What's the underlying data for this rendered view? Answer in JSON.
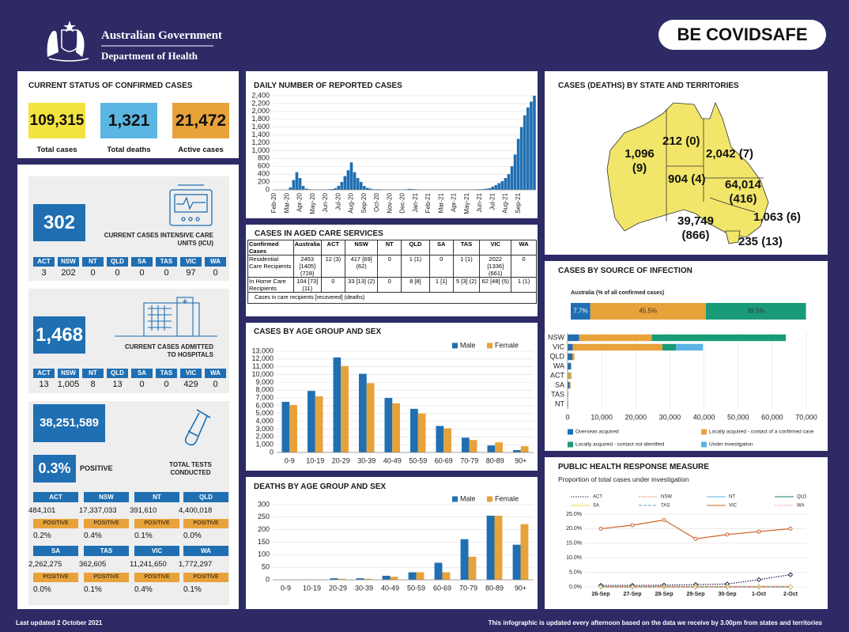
{
  "header": {
    "agency": "Australian Government",
    "department": "Department of Health",
    "brand": "BE COVIDSAFE"
  },
  "status": {
    "title": "CURRENT STATUS OF CONFIRMED CASES",
    "items": [
      {
        "value": "109,315",
        "label": "Total cases"
      },
      {
        "value": "1,321",
        "label": "Total deaths"
      },
      {
        "value": "21,472",
        "label": "Active cases"
      }
    ]
  },
  "states": [
    "ACT",
    "NSW",
    "NT",
    "QLD",
    "SA",
    "TAS",
    "VIC",
    "WA"
  ],
  "icu": {
    "value": "302",
    "label": "CURRENT CASES INTENSIVE CARE UNITS (ICU)",
    "values": [
      "3",
      "202",
      "0",
      "0",
      "0",
      "0",
      "97",
      "0"
    ]
  },
  "hospitals": {
    "value": "1,468",
    "label": "CURRENT CASES ADMITTED TO HOSPITALS",
    "values": [
      "13",
      "1,005",
      "8",
      "13",
      "0",
      "0",
      "429",
      "0"
    ]
  },
  "tests": {
    "total": "38,251,589",
    "positivity": "0.3%",
    "positive_label": "POSITIVE",
    "label": "TOTAL TESTS CONDUCTED",
    "by_state": [
      {
        "tests": "484,101",
        "positivity": "0.2%"
      },
      {
        "tests": "17,337,033",
        "positivity": "0.4%"
      },
      {
        "tests": "391,610",
        "positivity": "0.1%"
      },
      {
        "tests": "4,400,018",
        "positivity": "0.0%"
      },
      {
        "tests": "2,262,275",
        "positivity": "0.0%"
      },
      {
        "tests": "362,605",
        "positivity": "0.1%"
      },
      {
        "tests": "11,241,650",
        "positivity": "0.4%"
      },
      {
        "tests": "1,772,297",
        "positivity": "0.1%"
      }
    ]
  },
  "aged_care": {
    "title": "CASES IN AGED CARE SERVICES",
    "header": [
      "Confirmed Cases",
      "Australia",
      "ACT",
      "NSW",
      "NT",
      "QLD",
      "SA",
      "TAS",
      "VIC",
      "WA"
    ],
    "rows": [
      [
        "Residential Care Recipients",
        "2453 [1405] (728)",
        "12 (3)",
        "417 [69] (62)",
        "0",
        "1 (1)",
        "0",
        "1 (1)",
        "2022 [1336] (661)",
        "0"
      ],
      [
        "In Home Care Recipients",
        "104 [73] (11)",
        "0",
        "33 [13] (2)",
        "0",
        "8 [8]",
        "1 [1]",
        "5 [3] (2)",
        "62 [48] (5)",
        "1 (1)"
      ]
    ],
    "note": "Cases in care recipients [recovered] (deaths)"
  },
  "map": {
    "title": "CASES (DEATHS) BY STATE AND TERRITORIES",
    "labels": [
      "1,096 (9)",
      "212 (0)",
      "2,042 (7)",
      "904 (4)",
      "64,014 (416)",
      "1,063 (6)",
      "39,749 (866)",
      "235 (13)"
    ]
  },
  "footer": {
    "updated": "Last updated 2 October 2021",
    "note": "This infographic is updated every afternoon based on the data we receive by 3.00pm from states and territories"
  },
  "chart_data": [
    {
      "type": "bar",
      "title": "DAILY NUMBER OF REPORTED CASES",
      "color": "#1f6fb2",
      "grid": true,
      "categories": [
        "Feb-20",
        null,
        null,
        null,
        "Mar-20",
        null,
        null,
        null,
        "Apr-20",
        null,
        null,
        null,
        "May-20",
        null,
        null,
        null,
        "Jun-20",
        null,
        null,
        null,
        "Jul-20",
        null,
        null,
        null,
        "Aug-20",
        null,
        null,
        null,
        "Sep-20",
        null,
        null,
        null,
        "Oct-20",
        null,
        null,
        null,
        "Nov-20",
        null,
        null,
        null,
        "Dec-20",
        null,
        null,
        null,
        "Jan-21",
        null,
        null,
        null,
        "Feb-21",
        null,
        null,
        null,
        "Mar-21",
        null,
        null,
        null,
        "Apr-21",
        null,
        null,
        null,
        "May-21",
        null,
        null,
        null,
        "Jun-21",
        null,
        null,
        null,
        "Jul-21",
        null,
        null,
        null,
        "Aug-21",
        null,
        null,
        null,
        "Sep-21",
        null,
        null,
        null,
        null,
        null
      ],
      "values": [
        0,
        0,
        0,
        0,
        10,
        60,
        250,
        450,
        300,
        100,
        30,
        15,
        10,
        10,
        10,
        10,
        10,
        15,
        20,
        40,
        100,
        200,
        350,
        500,
        700,
        450,
        300,
        200,
        100,
        50,
        30,
        15,
        15,
        15,
        10,
        10,
        10,
        10,
        10,
        10,
        10,
        15,
        25,
        20,
        15,
        10,
        5,
        5,
        5,
        10,
        5,
        5,
        10,
        10,
        10,
        10,
        10,
        10,
        10,
        10,
        10,
        10,
        10,
        15,
        15,
        20,
        30,
        40,
        80,
        120,
        170,
        220,
        300,
        400,
        600,
        900,
        1300,
        1600,
        1900,
        2100,
        2250,
        2400
      ],
      "ylim": [
        0,
        2400
      ],
      "yticks": [
        0,
        200,
        400,
        600,
        800,
        {
          "value": 1000,
          "label": "1,000"
        },
        {
          "value": 1200,
          "label": "1,200"
        },
        {
          "value": 1400,
          "label": "1,400"
        },
        {
          "value": 1600,
          "label": "1,600"
        },
        {
          "value": 1800,
          "label": "1,800"
        },
        {
          "value": 2000,
          "label": "2,000"
        },
        {
          "value": 2200,
          "label": "2,200"
        },
        {
          "value": 2400,
          "label": "2,400"
        }
      ]
    },
    {
      "type": "grouped_bar",
      "title": "CASES BY AGE GROUP AND SEX",
      "grid": true,
      "legend": "top-right",
      "categories": [
        "0-9",
        "10-19",
        "20-29",
        "30-39",
        "40-49",
        "50-59",
        "60-69",
        "70-79",
        "80-89",
        "90+"
      ],
      "series": [
        {
          "name": "Male",
          "color": "#1f6fb2",
          "values": [
            6500,
            7900,
            12200,
            10100,
            7000,
            5600,
            3400,
            1900,
            900,
            300
          ]
        },
        {
          "name": "Female",
          "color": "#e8a23a",
          "values": [
            6100,
            7200,
            11100,
            8900,
            6300,
            5000,
            3100,
            1600,
            1300,
            800
          ]
        }
      ],
      "ylim": [
        0,
        13000
      ],
      "yticks": [
        0,
        {
          "value": 1000,
          "label": "1,000"
        },
        {
          "value": 2000,
          "label": "2,000"
        },
        {
          "value": 3000,
          "label": "3,000"
        },
        {
          "value": 4000,
          "label": "4,000"
        },
        {
          "value": 5000,
          "label": "5,000"
        },
        {
          "value": 6000,
          "label": "6,000"
        },
        {
          "value": 7000,
          "label": "7,000"
        },
        {
          "value": 8000,
          "label": "8,000"
        },
        {
          "value": 9000,
          "label": "9,000"
        },
        {
          "value": 10000,
          "label": "10,000"
        },
        {
          "value": 11000,
          "label": "11,000"
        },
        {
          "value": 12000,
          "label": "12,000"
        },
        {
          "value": 13000,
          "label": "13,000"
        }
      ]
    },
    {
      "type": "grouped_bar",
      "title": "DEATHS BY AGE GROUP AND SEX",
      "grid": true,
      "legend": "top-right",
      "categories": [
        "0-9",
        "10-19",
        "20-29",
        "30-39",
        "40-49",
        "50-59",
        "60-69",
        "70-79",
        "80-89",
        "90+"
      ],
      "series": [
        {
          "name": "Male",
          "color": "#1f6fb2",
          "values": [
            0,
            1,
            6,
            6,
            16,
            30,
            68,
            162,
            256,
            140
          ]
        },
        {
          "name": "Female",
          "color": "#e8a23a",
          "values": [
            0,
            1,
            4,
            4,
            12,
            30,
            30,
            92,
            256,
            222
          ]
        }
      ],
      "ylim": [
        0,
        300
      ],
      "yticks": [
        0,
        50,
        100,
        150,
        200,
        250,
        300
      ]
    },
    {
      "type": "stacked_barh",
      "title": "CASES BY SOURCE OF INFECTION",
      "subtitle": "Australia (% of all confirmed cases)",
      "grid": true,
      "legend": "bottom",
      "australia": {
        "values": [
          7.7,
          45.5,
          39.5
        ],
        "value_labels": [
          "7.7%",
          "45.5%",
          "39.5%"
        ]
      },
      "categories": [
        "NSW",
        "VIC",
        "QLD",
        "WA",
        "ACT",
        "SA",
        "TAS",
        "NT"
      ],
      "series": [
        {
          "name": "Overseas acquired",
          "color": "#1f6fb2",
          "values": [
            3400,
            1500,
            1400,
            1000,
            100,
            600,
            150,
            150
          ]
        },
        {
          "name": "Locally acquired - contact of a confirmed case",
          "color": "#e8a23a",
          "values": [
            21300,
            26300,
            600,
            100,
            800,
            300,
            80,
            60
          ]
        },
        {
          "name": "Locally acquired - contact not identified",
          "color": "#1a9b78",
          "values": [
            39300,
            4000,
            0,
            0,
            150,
            0,
            0,
            0
          ]
        },
        {
          "name": "Under investigation",
          "color": "#5ab4e5",
          "values": [
            0,
            7900,
            0,
            0,
            0,
            0,
            0,
            0
          ]
        }
      ],
      "xlim": [
        0,
        70000
      ],
      "xticks": [
        0,
        {
          "value": 10000,
          "label": "10,000"
        },
        {
          "value": 20000,
          "label": "20,000"
        },
        {
          "value": 30000,
          "label": "30,000"
        },
        {
          "value": 40000,
          "label": "40,000"
        },
        {
          "value": 50000,
          "label": "50,000"
        },
        {
          "value": 60000,
          "label": "60,000"
        },
        {
          "value": 70000,
          "label": "70,000"
        }
      ]
    },
    {
      "type": "line",
      "title": "PUBLIC HEALTH RESPONSE MEASURE",
      "subtitle": "Proportion of total cases under investigation",
      "grid": true,
      "legend": "top",
      "categories": [
        "26-Sep",
        "27-Sep",
        "28-Sep",
        "29-Sep",
        "30-Sep",
        "1-Oct",
        "2-Oct"
      ],
      "series": [
        {
          "name": "ACT",
          "color": "#1b1b4b",
          "line_style": "dotted",
          "marker": "diamond",
          "values": [
            0.5,
            0.5,
            0.6,
            0.8,
            1.0,
            2.5,
            4.2
          ]
        },
        {
          "name": "NSW",
          "color": "#e8743a",
          "line_style": "dotted",
          "marker": "none",
          "values": [
            0.2,
            0.2,
            0.2,
            0.2,
            0.2,
            0.2,
            0.2
          ]
        },
        {
          "name": "NT",
          "color": "#5ab4e5",
          "line_style": "solid",
          "marker": "diamond",
          "values": [
            0,
            0,
            0,
            0,
            0,
            0,
            0
          ]
        },
        {
          "name": "QLD",
          "color": "#1a7a7a",
          "line_style": "solid",
          "marker": "diamond",
          "values": [
            0,
            0,
            0,
            0,
            0,
            0,
            0
          ]
        },
        {
          "name": "SA",
          "color": "#f2d23f",
          "line_style": "solid",
          "marker": "circle",
          "values": [
            0,
            0,
            0,
            0,
            0,
            0,
            0
          ]
        },
        {
          "name": "TAS",
          "color": "#5aa8b0",
          "line_style": "dashed",
          "marker": "none",
          "values": [
            0,
            0,
            0,
            0,
            0,
            0,
            0
          ]
        },
        {
          "name": "VIC",
          "color": "#d0612a",
          "line_style": "solid",
          "marker": "circle",
          "values": [
            20.0,
            21.2,
            23.0,
            16.5,
            18.0,
            19.0,
            20.0
          ]
        },
        {
          "name": "WA",
          "color": "#e87ba0",
          "line_style": "dotted",
          "marker": "none",
          "values": [
            0,
            0,
            0,
            0,
            0,
            0,
            0
          ]
        }
      ],
      "ylim": [
        0,
        25
      ],
      "yticks": [
        {
          "value": 0,
          "label": "0.0%"
        },
        {
          "value": 5,
          "label": "5.0%"
        },
        {
          "value": 10,
          "label": "10.0%"
        },
        {
          "value": 15,
          "label": "15.0%"
        },
        {
          "value": 20,
          "label": "20.0%"
        },
        {
          "value": 25,
          "label": "25.0%"
        }
      ]
    }
  ]
}
